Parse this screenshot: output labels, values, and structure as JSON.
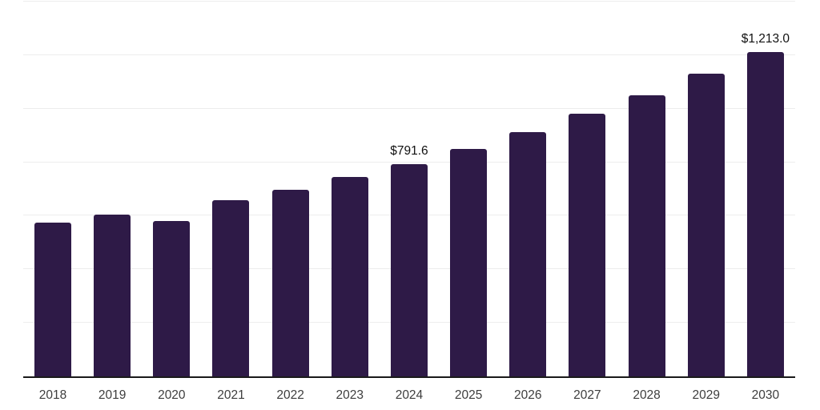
{
  "chart_data": {
    "type": "bar",
    "title": "",
    "xlabel": "",
    "ylabel": "",
    "categories": [
      "2018",
      "2019",
      "2020",
      "2021",
      "2022",
      "2023",
      "2024",
      "2025",
      "2026",
      "2027",
      "2028",
      "2029",
      "2030"
    ],
    "values": [
      575,
      604,
      580,
      658,
      697,
      746,
      791.6,
      850,
      913,
      980,
      1050,
      1130,
      1213
    ],
    "data_labels": [
      {
        "category": "2024",
        "text": "$791.6"
      },
      {
        "category": "2030",
        "text": "$1,213.0"
      }
    ],
    "ylim": [
      0,
      1400
    ],
    "gridline_interval": 200,
    "grid": true,
    "legend": false,
    "y_axis_tick_labels_visible": false,
    "colors": {
      "bar": "#2e1a47",
      "gridline": "#ededed",
      "axis": "#1a1a1a",
      "data_label": "#111111",
      "tick_label": "#3d3d3d",
      "background": "#ffffff"
    }
  }
}
